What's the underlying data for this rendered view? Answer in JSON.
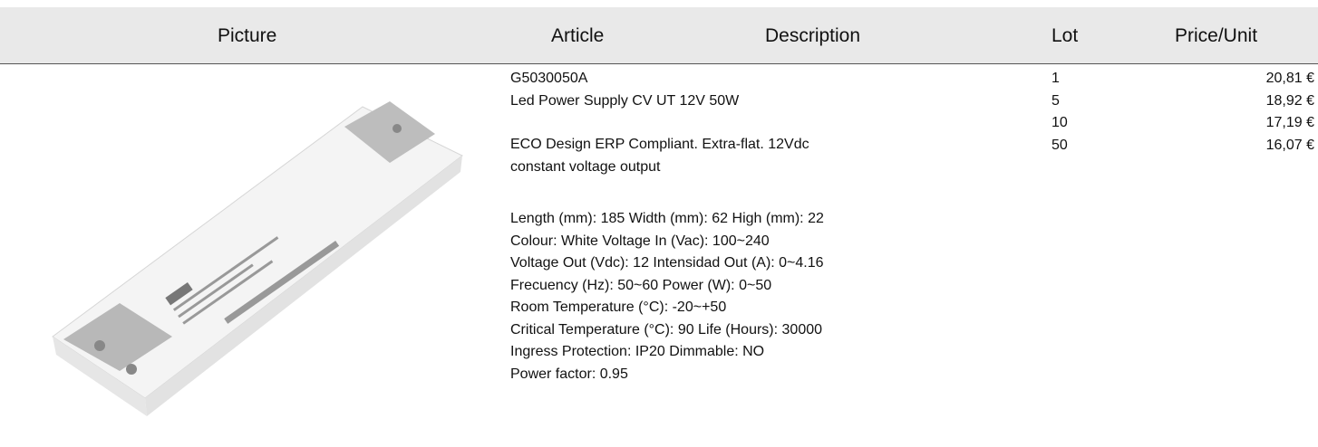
{
  "header": {
    "picture": "Picture",
    "article": "Article",
    "description": "Description",
    "lot": "Lot",
    "price": "Price/Unit"
  },
  "product": {
    "code": "G5030050A",
    "name": "Led Power Supply CV UT 12V 50W",
    "description": [
      "ECO Design ERP Compliant. Extra-flat. 12Vdc",
      "constant voltage output"
    ],
    "specs": [
      "Length (mm): 185 Width (mm): 62 High (mm): 22",
      "Colour: White Voltage In (Vac): 100~240",
      "Voltage Out (Vdc): 12 Intensidad Out (A): 0~4.16",
      "Frecuency (Hz): 50~60 Power (W): 0~50",
      "Room Temperature (°C): -20~+50",
      "Critical Temperature (°C): 90 Life (Hours): 30000",
      "Ingress Protection: IP20 Dimmable: NO",
      "Power factor: 0.95"
    ]
  },
  "prices": [
    {
      "lot": "1",
      "price": "20,81 €"
    },
    {
      "lot": "5",
      "price": "18,92 €"
    },
    {
      "lot": "10",
      "price": "17,19 €"
    },
    {
      "lot": "50",
      "price": "16,07 €"
    }
  ]
}
